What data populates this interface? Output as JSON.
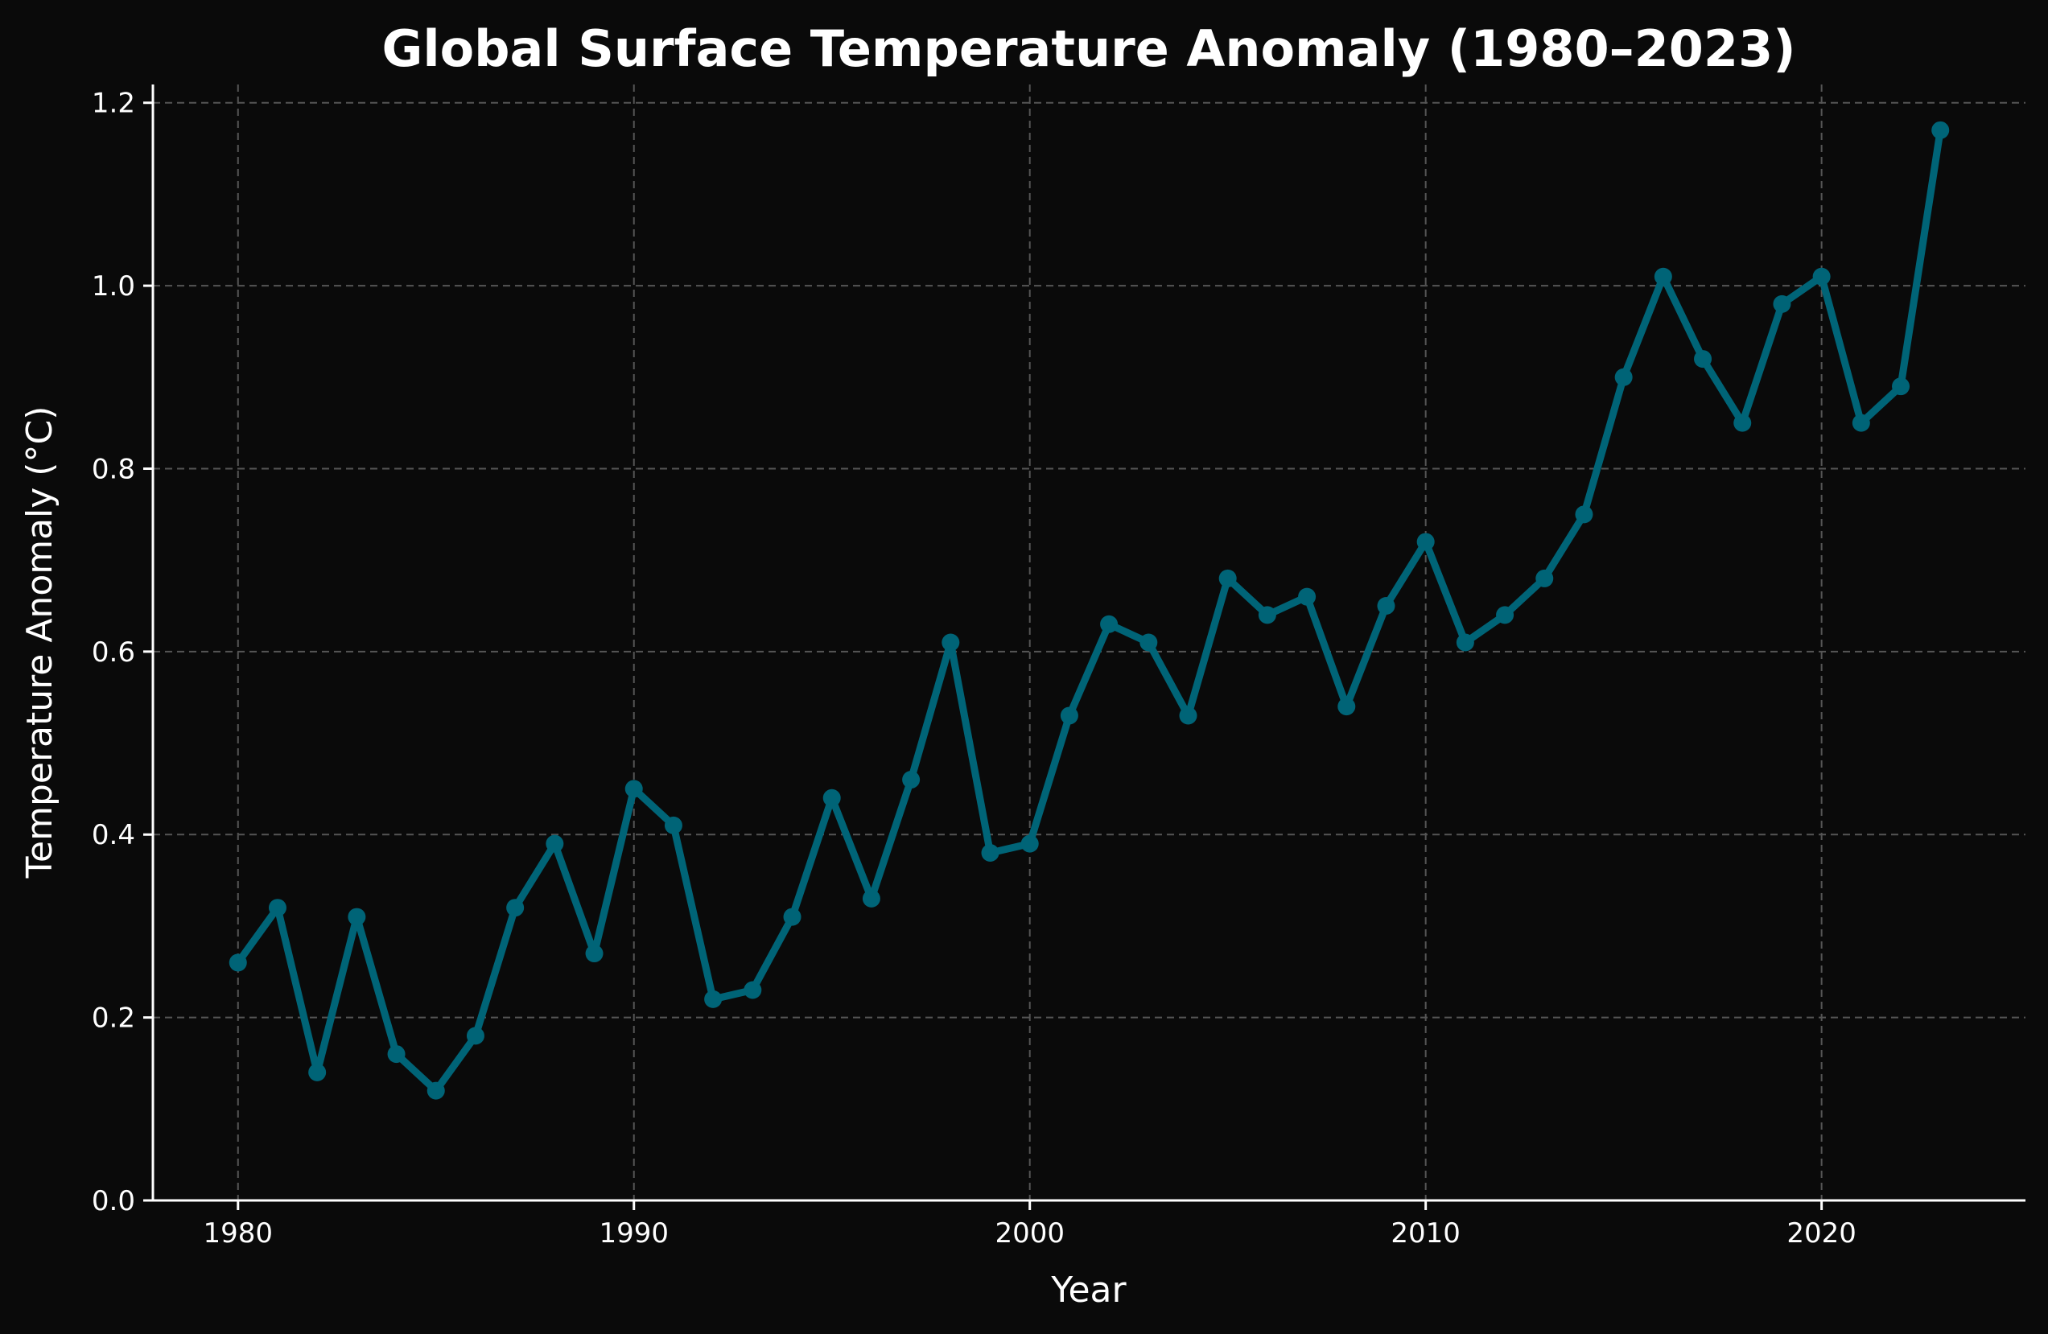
{
  "chart_data": {
    "type": "line",
    "title": "Global Surface Temperature Anomaly (1980–2023)",
    "xlabel": "Year",
    "ylabel": "Temperature Anomaly (°C)",
    "xlim": [
      1977.85,
      2025.15
    ],
    "ylim": [
      0.0,
      1.22
    ],
    "xticks": [
      1980,
      1990,
      2000,
      2010,
      2020
    ],
    "yticks": [
      0.0,
      0.2,
      0.4,
      0.6,
      0.8,
      1.0,
      1.2
    ],
    "ytick_labels": [
      "0.0",
      "0.2",
      "0.4",
      "0.6",
      "0.8",
      "1.0",
      "1.2"
    ],
    "grid": true,
    "colors": {
      "background": "#0a0a0a",
      "line": "#006477",
      "grid": "#555555",
      "text": "#ffffff"
    },
    "series": [
      {
        "x": [
          1980,
          1981,
          1982,
          1983,
          1984,
          1985,
          1986,
          1987,
          1988,
          1989,
          1990,
          1991,
          1992,
          1993,
          1994,
          1995,
          1996,
          1997,
          1998,
          1999,
          2000,
          2001,
          2002,
          2003,
          2004,
          2005,
          2006,
          2007,
          2008,
          2009,
          2010,
          2011,
          2012,
          2013,
          2014,
          2015,
          2016,
          2017,
          2018,
          2019,
          2020,
          2021,
          2022,
          2023
        ],
        "values": [
          0.26,
          0.32,
          0.14,
          0.31,
          0.16,
          0.12,
          0.18,
          0.32,
          0.39,
          0.27,
          0.45,
          0.41,
          0.22,
          0.23,
          0.31,
          0.44,
          0.33,
          0.46,
          0.61,
          0.38,
          0.39,
          0.53,
          0.63,
          0.61,
          0.53,
          0.68,
          0.64,
          0.66,
          0.54,
          0.65,
          0.72,
          0.61,
          0.64,
          0.68,
          0.75,
          0.9,
          1.01,
          0.92,
          0.85,
          0.98,
          1.01,
          0.85,
          0.89,
          1.17
        ]
      }
    ]
  }
}
